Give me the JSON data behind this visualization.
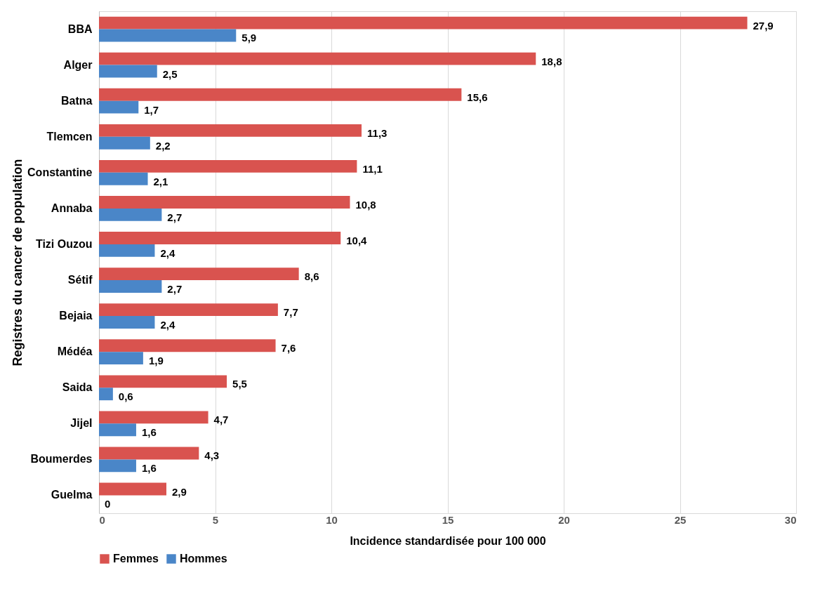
{
  "chart_data": {
    "type": "bar",
    "orientation": "horizontal",
    "xlabel": "Incidence standardisée pour 100 000",
    "ylabel": "Registres du cancer de population",
    "categories": [
      "BBA",
      "Alger",
      "Batna",
      "Tlemcen",
      "Constantine",
      "Annaba",
      "Tizi Ouzou",
      "Sétif",
      "Bejaia",
      "Médéa",
      "Saida",
      "Jijel",
      "Boumerdes",
      "Guelma"
    ],
    "series": [
      {
        "name": "Femmes",
        "color": "#d9534f",
        "values": [
          27.9,
          18.8,
          15.6,
          11.3,
          11.1,
          10.8,
          10.4,
          8.6,
          7.7,
          7.6,
          5.5,
          4.7,
          4.3,
          2.9
        ],
        "value_labels": [
          "27,9",
          "18,8",
          "15,6",
          "11,3",
          "11,1",
          "10,8",
          "10,4",
          "8,6",
          "7,7",
          "7,6",
          "5,5",
          "4,7",
          "4,3",
          "2,9"
        ]
      },
      {
        "name": "Hommes",
        "color": "#4a86c8",
        "values": [
          5.9,
          2.5,
          1.7,
          2.2,
          2.1,
          2.7,
          2.4,
          2.7,
          2.4,
          1.9,
          0.6,
          1.6,
          1.6,
          0
        ],
        "value_labels": [
          "5,9",
          "2,5",
          "1,7",
          "2,2",
          "2,1",
          "2,7",
          "2,4",
          "2,7",
          "2,4",
          "1,9",
          "0,6",
          "1,6",
          "1,6",
          "0"
        ]
      }
    ],
    "xlim": [
      0,
      30
    ],
    "xticks": [
      0,
      5,
      10,
      15,
      20,
      25,
      30
    ],
    "grid": "x",
    "legend": "bottom"
  }
}
